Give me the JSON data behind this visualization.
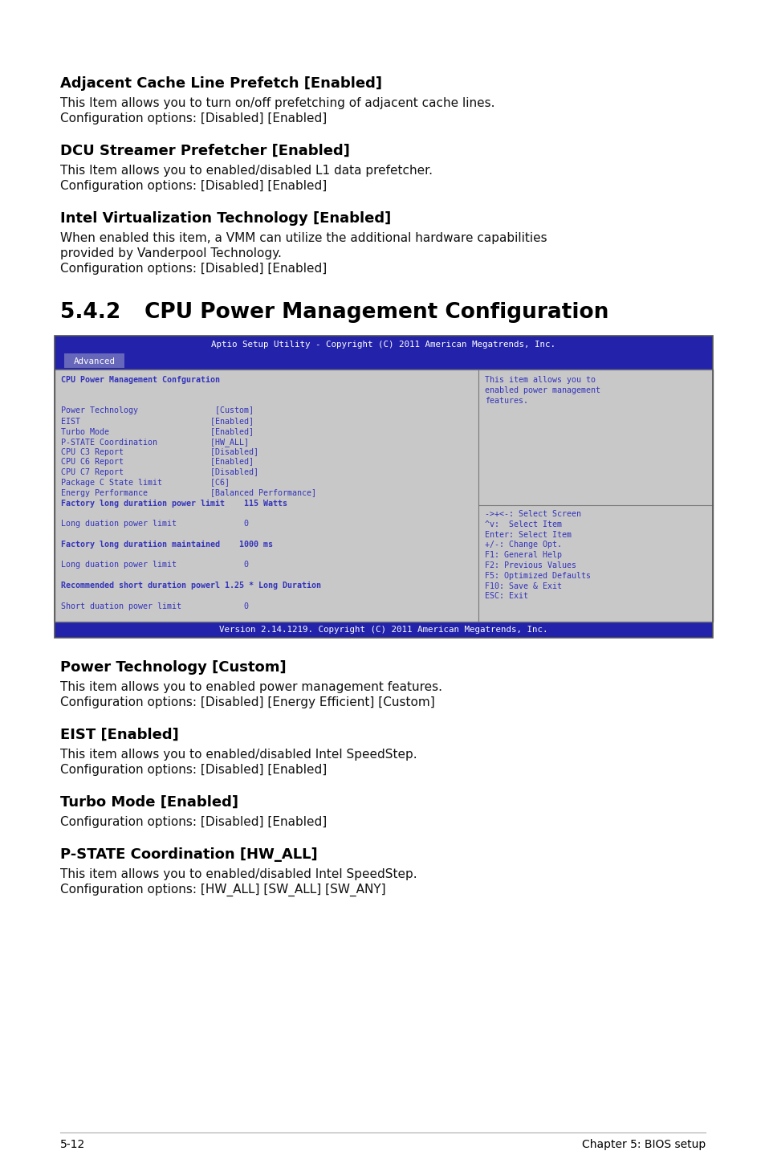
{
  "page_bg": "#ffffff",
  "sections": [
    {
      "heading": "Adjacent Cache Line Prefetch [Enabled]",
      "body": [
        "This Item allows you to turn on/off prefetching of adjacent cache lines.",
        "Configuration options: [Disabled] [Enabled]"
      ]
    },
    {
      "heading": "DCU Streamer Prefetcher [Enabled]",
      "body": [
        "This Item allows you to enabled/disabled L1 data prefetcher.",
        "Configuration options: [Disabled] [Enabled]"
      ]
    },
    {
      "heading": "Intel Virtualization Technology [Enabled]",
      "body": [
        "When enabled this item, a VMM can utilize the additional hardware capabilities",
        "provided by Vanderpool Technology.",
        "Configuration options: [Disabled] [Enabled]"
      ]
    }
  ],
  "chapter_num": "5.4.2",
  "chapter_title": "CPU Power Management Configuration",
  "bios_screen": {
    "title_bar": "Aptio Setup Utility - Copyright (C) 2011 American Megatrends, Inc.",
    "tab": "Advanced",
    "bg_color": "#c8c8c8",
    "header_bg": "#2222aa",
    "header_fg": "#ffffff",
    "left_panel_text": [
      [
        "CPU Power Management Confguration",
        true
      ],
      [
        "",
        false
      ],
      [
        "",
        false
      ],
      [
        "Power Technology                [Custom]",
        false
      ],
      [
        "EIST                           [Enabled]",
        false
      ],
      [
        "Turbo Mode                     [Enabled]",
        false
      ],
      [
        "P-STATE Coordination           [HW_ALL]",
        false
      ],
      [
        "CPU C3 Report                  [Disabled]",
        false
      ],
      [
        "CPU C6 Report                  [Enabled]",
        false
      ],
      [
        "CPU C7 Report                  [Disabled]",
        false
      ],
      [
        "Package C State limit          [C6]",
        false
      ],
      [
        "Energy Performance             [Balanced Performance]",
        false
      ],
      [
        "Factory long duratiion power limit    115 Watts",
        true
      ],
      [
        "",
        false
      ],
      [
        "Long duation power limit              0",
        false
      ],
      [
        "",
        false
      ],
      [
        "Factory long duratiion maintained    1000 ms",
        true
      ],
      [
        "",
        false
      ],
      [
        "Long duation power limit              0",
        false
      ],
      [
        "",
        false
      ],
      [
        "Recommended short duration powerl 1.25 * Long Duration",
        true
      ],
      [
        "",
        false
      ],
      [
        "Short duation power limit             0",
        false
      ]
    ],
    "right_panel_top": [
      "This item allows you to",
      "enabled power management",
      "features."
    ],
    "right_panel_bottom": [
      "->+<-: Select Screen",
      "^v:  Select Item",
      "Enter: Select Item",
      "+/-: Change Opt.",
      "F1: General Help",
      "F2: Previous Values",
      "F5: Optimized Defaults",
      "F10: Save & Exit",
      "ESC: Exit"
    ],
    "version_bar": "Version 2.14.1219. Copyright (C) 2011 American Megatrends, Inc.",
    "text_color": "#3333bb"
  },
  "post_sections": [
    {
      "heading": "Power Technology [Custom]",
      "body": [
        "This item allows you to enabled power management features.",
        "Configuration options: [Disabled] [Energy Efficient] [Custom]"
      ]
    },
    {
      "heading": "EIST [Enabled]",
      "body": [
        "This item allows you to enabled/disabled Intel SpeedStep.",
        "Configuration options: [Disabled] [Enabled]"
      ]
    },
    {
      "heading": "Turbo Mode [Enabled]",
      "body": [
        "Configuration options: [Disabled] [Enabled]"
      ]
    },
    {
      "heading": "P-STATE Coordination [HW_ALL]",
      "body": [
        "This item allows you to enabled/disabled Intel SpeedStep.",
        "Configuration options: [HW_ALL] [SW_ALL] [SW_ANY]"
      ]
    }
  ],
  "footer_left": "5-12",
  "footer_right": "Chapter 5: BIOS setup"
}
